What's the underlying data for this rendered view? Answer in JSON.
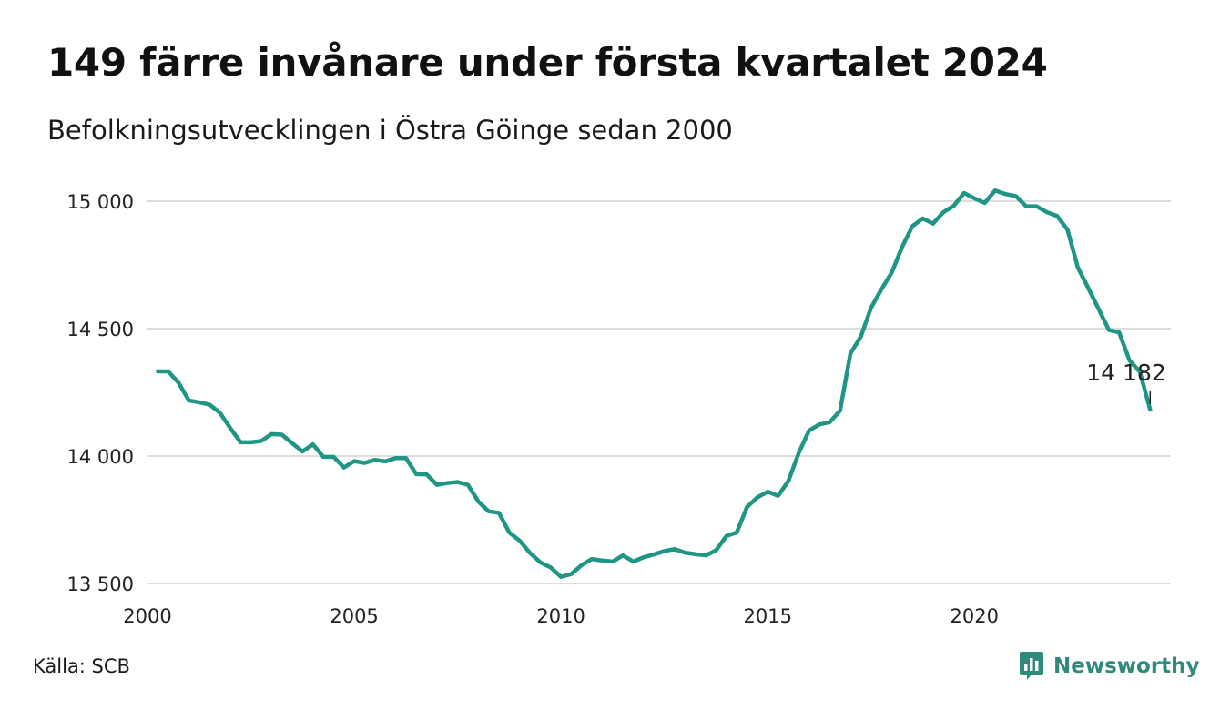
{
  "title": "149 färre invånare under första kvartalet 2024",
  "subtitle": "Befolkningsutvecklingen i Östra Göinge sedan 2000",
  "source": "Källa: SCB",
  "brand": {
    "name": "Newsworthy",
    "icon": "bar-chart-speech-bubble-icon",
    "color": "#2f8a7c"
  },
  "chart_data": {
    "type": "line",
    "title": "",
    "xlabel": "",
    "ylabel": "",
    "xlim": [
      2000,
      2024.75
    ],
    "ylim": [
      13500,
      15000
    ],
    "grid": true,
    "line_color": "#1f9685",
    "x_ticks": [
      2000,
      2005,
      2010,
      2015,
      2020
    ],
    "x_tick_labels": [
      "2000",
      "2005",
      "2010",
      "2015",
      "2020"
    ],
    "y_ticks": [
      13500,
      14000,
      14500,
      15000
    ],
    "y_tick_labels": [
      "13 500",
      "14 000",
      "14 500",
      "15 000"
    ],
    "end_label": "14 182",
    "series": [
      {
        "x": [
          2000.25,
          2000.5,
          2000.75,
          2001.0,
          2001.25,
          2001.5,
          2001.75,
          2002.0,
          2002.25,
          2002.5,
          2002.75,
          2003.0,
          2003.25,
          2003.5,
          2003.75,
          2004.0,
          2004.25,
          2004.5,
          2004.75,
          2005.0,
          2005.25,
          2005.5,
          2005.75,
          2006.0,
          2006.25,
          2006.5,
          2006.75,
          2007.0,
          2007.25,
          2007.5,
          2007.75,
          2008.0,
          2008.25,
          2008.5,
          2008.75,
          2009.0,
          2009.25,
          2009.5,
          2009.75,
          2010.0,
          2010.25,
          2010.5,
          2010.75,
          2011.0,
          2011.25,
          2011.5,
          2011.75,
          2012.0,
          2012.25,
          2012.5,
          2012.75,
          2013.0,
          2013.25,
          2013.5,
          2013.75,
          2014.0,
          2014.25,
          2014.5,
          2014.75,
          2015.0,
          2015.25,
          2015.5,
          2015.75,
          2016.0,
          2016.25,
          2016.5,
          2016.75,
          2017.0,
          2017.25,
          2017.5,
          2017.75,
          2018.0,
          2018.25,
          2018.5,
          2018.75,
          2019.0,
          2019.25,
          2019.5,
          2019.75,
          2020.0,
          2020.25,
          2020.5,
          2020.75,
          2021.0,
          2021.25,
          2021.5,
          2021.75,
          2022.0,
          2022.25,
          2022.5,
          2022.75,
          2023.0,
          2023.25,
          2023.5,
          2023.75,
          2024.0,
          2024.25
        ],
        "y": [
          14332,
          14332,
          14288,
          14218,
          14211,
          14202,
          14170,
          14110,
          14054,
          14054,
          14059,
          14086,
          14084,
          14050,
          14018,
          14046,
          13997,
          13997,
          13955,
          13980,
          13973,
          13985,
          13979,
          13992,
          13992,
          13929,
          13928,
          13887,
          13894,
          13898,
          13887,
          13822,
          13783,
          13777,
          13700,
          13668,
          13620,
          13583,
          13563,
          13526,
          13537,
          13572,
          13596,
          13590,
          13586,
          13610,
          13586,
          13603,
          13614,
          13627,
          13635,
          13621,
          13615,
          13610,
          13630,
          13686,
          13700,
          13800,
          13838,
          13860,
          13844,
          13902,
          14012,
          14100,
          14124,
          14133,
          14178,
          14402,
          14468,
          14582,
          14654,
          14720,
          14820,
          14902,
          14932,
          14912,
          14957,
          14982,
          15032,
          15011,
          14993,
          15042,
          15028,
          15020,
          14980,
          14980,
          14957,
          14942,
          14888,
          14740,
          14660,
          14578,
          14495,
          14485,
          14375,
          14331,
          14182
        ]
      }
    ]
  }
}
